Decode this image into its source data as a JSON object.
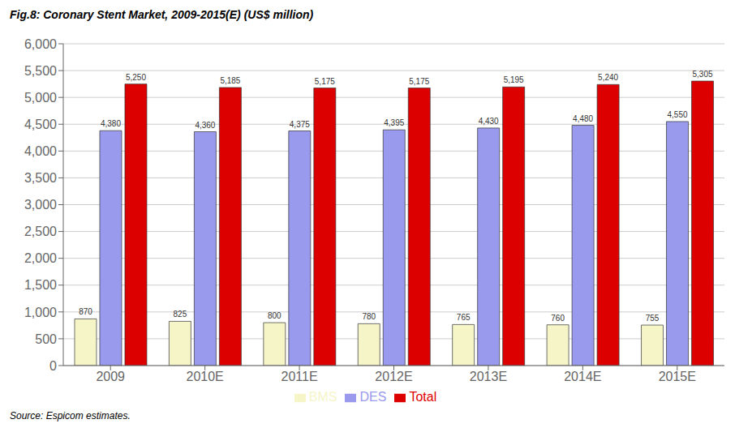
{
  "chart_data": {
    "type": "bar",
    "title": "Fig.8: Coronary Stent Market, 2009-2015(E) (US$ million)",
    "annotations": [
      "Source: Espicom estimates."
    ],
    "categories": [
      "2009",
      "2010E",
      "2011E",
      "2012E",
      "2013E",
      "2014E",
      "2015E"
    ],
    "series": [
      {
        "name": "BMS",
        "color": "#F5F5C8",
        "values": [
          870,
          825,
          800,
          780,
          765,
          760,
          755
        ],
        "value_labels": [
          "870",
          "825",
          "800",
          "780",
          "765",
          "760",
          "755"
        ]
      },
      {
        "name": "DES",
        "color": "#9999EE",
        "values": [
          4380,
          4360,
          4375,
          4395,
          4430,
          4480,
          4550
        ],
        "value_labels": [
          "4,380",
          "4,360",
          "4,375",
          "4,395",
          "4,430",
          "4,480",
          "4,550"
        ]
      },
      {
        "name": "Total",
        "color": "#DD0000",
        "values": [
          5250,
          5185,
          5175,
          5175,
          5195,
          5240,
          5305
        ],
        "value_labels": [
          "5,250",
          "5,185",
          "5,175",
          "5,175",
          "5,195",
          "5,240",
          "5,305"
        ]
      }
    ],
    "ylim": [
      0,
      6000
    ],
    "yticks": [
      0,
      500,
      {
        "value": 1000,
        "label": "1,000"
      },
      {
        "value": 1500,
        "label": "1,500"
      },
      {
        "value": 2000,
        "label": "2,000"
      },
      {
        "value": 2500,
        "label": "2,500"
      },
      {
        "value": 3000,
        "label": "3,000"
      },
      {
        "value": 3500,
        "label": "3,500"
      },
      {
        "value": 4000,
        "label": "4,000"
      },
      {
        "value": 4500,
        "label": "4,500"
      },
      {
        "value": 5000,
        "label": "5,000"
      },
      {
        "value": 5500,
        "label": "5,500"
      },
      {
        "value": 6000,
        "label": "6,000"
      }
    ],
    "grid": true,
    "legend": "bottom",
    "data_labels": true
  }
}
